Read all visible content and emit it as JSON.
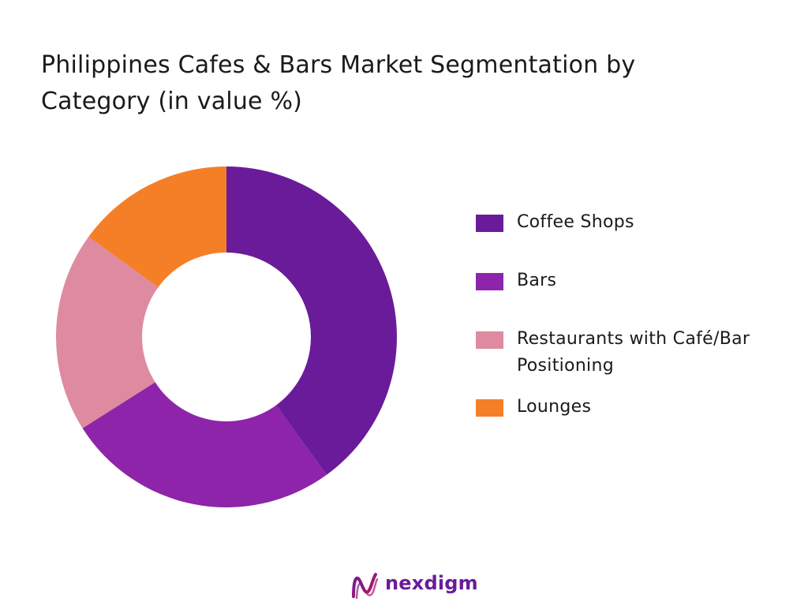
{
  "chart_data": {
    "type": "pie",
    "style": "donut",
    "title": "Philippines Cafes & Bars Market Segmentation by Category (in value %)",
    "categories": [
      "Coffee Shops",
      "Bars",
      "Restaurants with Café/Bar Positioning",
      "Lounges"
    ],
    "values": [
      40,
      26,
      19,
      15
    ],
    "unit": "%",
    "colors": [
      "#6a1b9a",
      "#8e24aa",
      "#de8aa0",
      "#f57f27"
    ],
    "legend_position": "right"
  },
  "brand": {
    "name": "nexdigm",
    "text_color": "#6a1b9a",
    "logo_colors": [
      "#6a1b9a",
      "#c2185b"
    ]
  }
}
